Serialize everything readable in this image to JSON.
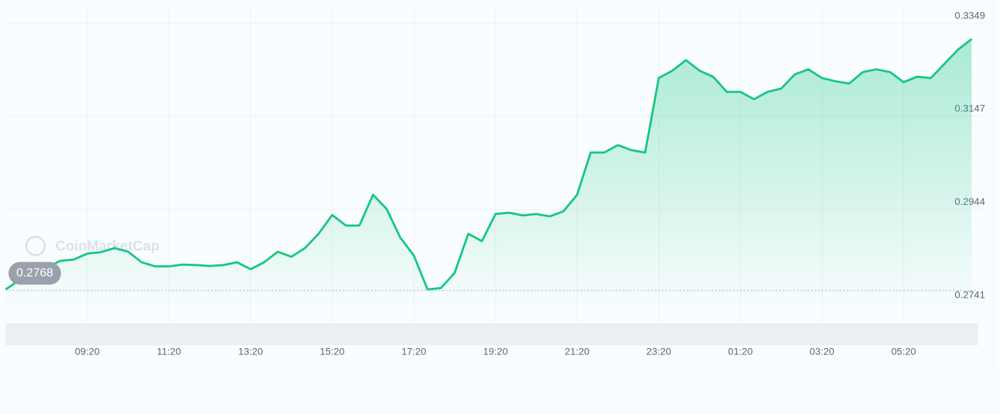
{
  "chart_data": {
    "type": "area",
    "watermark": "CoinMarketCap",
    "color": "#16c784",
    "categories": [
      null,
      null,
      null,
      null,
      null,
      null,
      "09:20",
      null,
      null,
      null,
      null,
      null,
      "11:20",
      null,
      null,
      null,
      null,
      null,
      "13:20",
      null,
      null,
      null,
      null,
      null,
      "15:20",
      null,
      null,
      null,
      null,
      null,
      "17:20",
      null,
      null,
      null,
      null,
      null,
      "19:20",
      null,
      null,
      null,
      null,
      null,
      "21:20",
      null,
      null,
      null,
      null,
      null,
      "23:20",
      null,
      null,
      null,
      null,
      null,
      "01:20",
      null,
      null,
      null,
      null,
      null,
      "03:20",
      null,
      null,
      null,
      null,
      null,
      "05:20",
      null,
      null,
      null,
      null,
      null
    ],
    "values": [
      0.277,
      0.279,
      0.279,
      0.2817,
      0.2832,
      0.2835,
      0.2848,
      0.2851,
      0.286,
      0.2852,
      0.2829,
      0.282,
      0.282,
      0.2824,
      0.2823,
      0.2821,
      0.2823,
      0.2829,
      0.2814,
      0.2829,
      0.2852,
      0.2841,
      0.286,
      0.2891,
      0.2932,
      0.2909,
      0.2909,
      0.2976,
      0.2945,
      0.2883,
      0.2844,
      0.277,
      0.2773,
      0.2806,
      0.2891,
      0.2875,
      0.2934,
      0.2937,
      0.2931,
      0.2934,
      0.2929,
      0.294,
      0.2976,
      0.3068,
      0.3068,
      0.3084,
      0.3073,
      0.3068,
      0.323,
      0.3246,
      0.3269,
      0.3246,
      0.3233,
      0.32,
      0.32,
      0.3184,
      0.32,
      0.3207,
      0.3238,
      0.3249,
      0.323,
      0.3223,
      0.3218,
      0.3243,
      0.3249,
      0.3243,
      0.3221,
      0.3233,
      0.323,
      0.3261,
      0.3292,
      0.3315
    ],
    "reference_line": 0.2768,
    "ylim": [
      0.2741,
      0.3349
    ],
    "yticks": [
      0.2741,
      0.2944,
      0.3147,
      0.3349
    ],
    "grid": true
  }
}
